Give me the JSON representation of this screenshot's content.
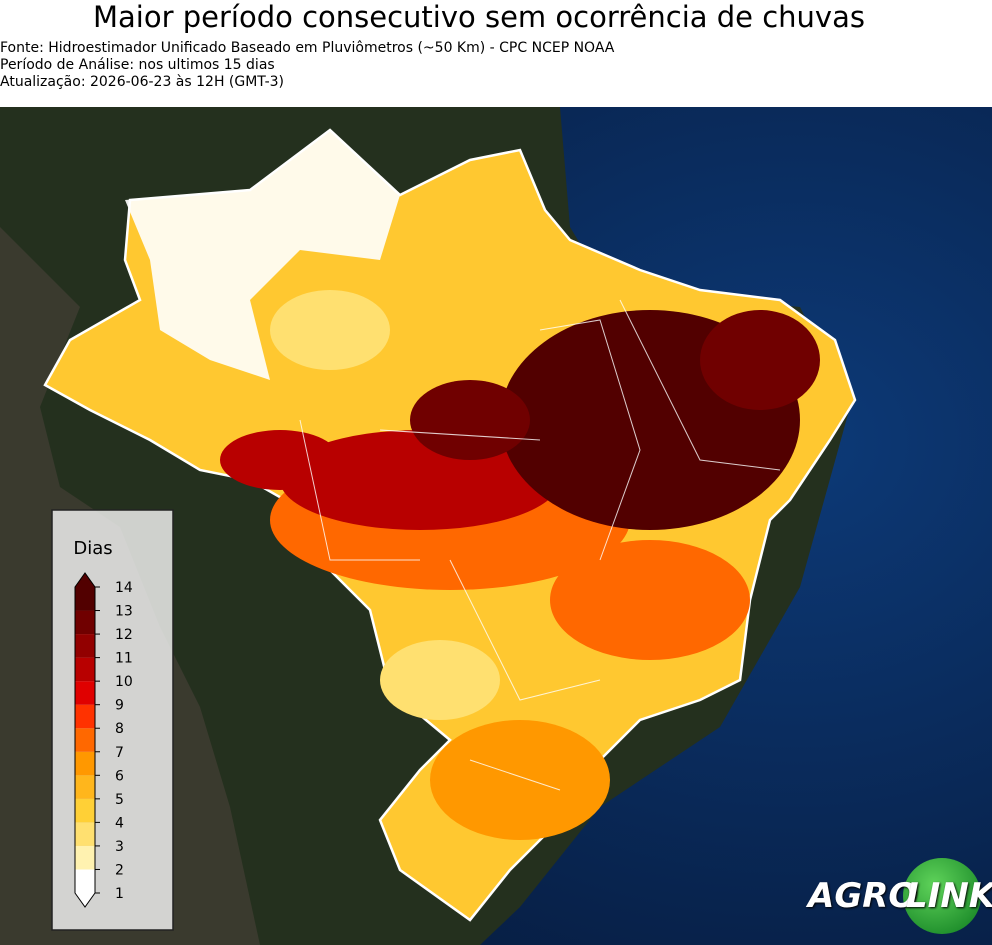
{
  "title": "Maior período consecutivo sem ocorrência de chuvas",
  "subtitle_lines": [
    "Fonte: Hidroestimador Unificado Baseado em Pluviômetros (~50 Km) - CPC NCEP NOAA",
    "Período de Análise: nos ultimos 15 dias",
    "Atualização: 2026-06-23 às 12H (GMT-3)"
  ],
  "legend": {
    "title": "Dias",
    "ticks": [
      1,
      2,
      3,
      4,
      5,
      6,
      7,
      8,
      9,
      10,
      11,
      12,
      13,
      14
    ],
    "colors": [
      "#ffffff",
      "#fff2b0",
      "#ffe070",
      "#ffd036",
      "#ffb61c",
      "#ff9800",
      "#ff6800",
      "#ff3200",
      "#e00000",
      "#b80000",
      "#920000",
      "#700000",
      "#520000"
    ]
  },
  "logo": {
    "left": "AGRO",
    "right": "LINK"
  }
}
